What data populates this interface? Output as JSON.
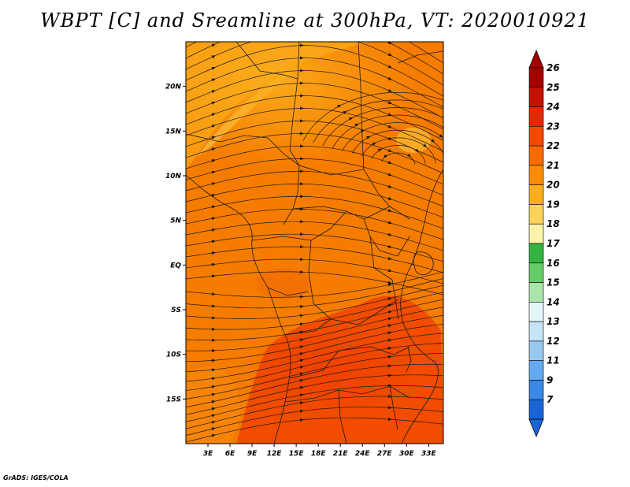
{
  "title": "WBPT [C] and Sreamline at 300hPa, VT: 2020010921",
  "credit": "GrADS: IGES/COLA",
  "map": {
    "lat_labels": [
      "20N",
      "15N",
      "10N",
      "5N",
      "EQ",
      "5S",
      "10S",
      "15S"
    ],
    "lat_values": [
      20,
      15,
      10,
      5,
      0,
      -5,
      -10,
      -15
    ],
    "lon_labels": [
      "3E",
      "6E",
      "9E",
      "12E",
      "15E",
      "18E",
      "21E",
      "24E",
      "27E",
      "30E",
      "33E"
    ],
    "lon_values": [
      3,
      6,
      9,
      12,
      15,
      18,
      21,
      24,
      27,
      30,
      33
    ],
    "lon_range": [
      0,
      35
    ],
    "lat_range": [
      -20,
      25
    ]
  },
  "colorbar": {
    "labels": [
      "26",
      "25",
      "24",
      "23",
      "22",
      "21",
      "20",
      "19",
      "18",
      "17",
      "16",
      "15",
      "14",
      "13",
      "12",
      "11",
      "9",
      "7"
    ],
    "colors": [
      "#a50000",
      "#c41000",
      "#e02a00",
      "#f44a00",
      "#fa6a00",
      "#fb8c00",
      "#fbae1c",
      "#fcd25a",
      "#fcf3a8",
      "#33b440",
      "#66cc66",
      "#aae6aa",
      "#e4f6f8",
      "#c6e4f8",
      "#96c8f0",
      "#64aaf0",
      "#3a88e6",
      "#1a64d8"
    ]
  }
}
